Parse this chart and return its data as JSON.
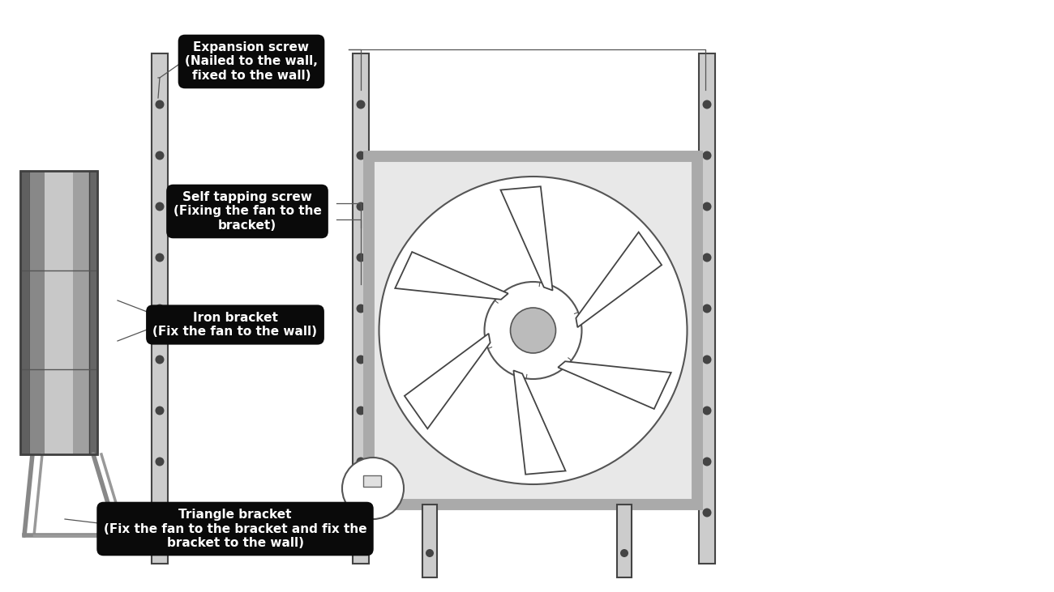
{
  "bg_color": "#ffffff",
  "labels": {
    "expansion_screw": "Expansion screw\n(Nailed to the wall,\nfixed to the wall)",
    "self_tapping": "Self tapping screw\n(Fixing the fan to the\nbracket)",
    "iron_bracket": "Iron bracket\n(Fix the fan to the wall)",
    "triangle_bracket": "Triangle bracket\n(Fix the fan to the bracket and fix the\nbracket to the wall)"
  },
  "label_bg": "#0a0a0a",
  "label_text_color": "#ffffff",
  "post_light": "#cccccc",
  "post_dark": "#444444",
  "fan_box_fill": "#e8e8e8",
  "fan_box_edge": "#aaaaaa",
  "fan_circle_edge": "#555555",
  "hub_fill": "#bbbbbb",
  "blade_edge": "#444444",
  "left_unit_dark": "#777777",
  "left_unit_mid": "#999999",
  "left_unit_light": "#d0d0d0",
  "triangle_color": "#888888",
  "line_color": "#555555",
  "motor_fill": "#dddddd"
}
